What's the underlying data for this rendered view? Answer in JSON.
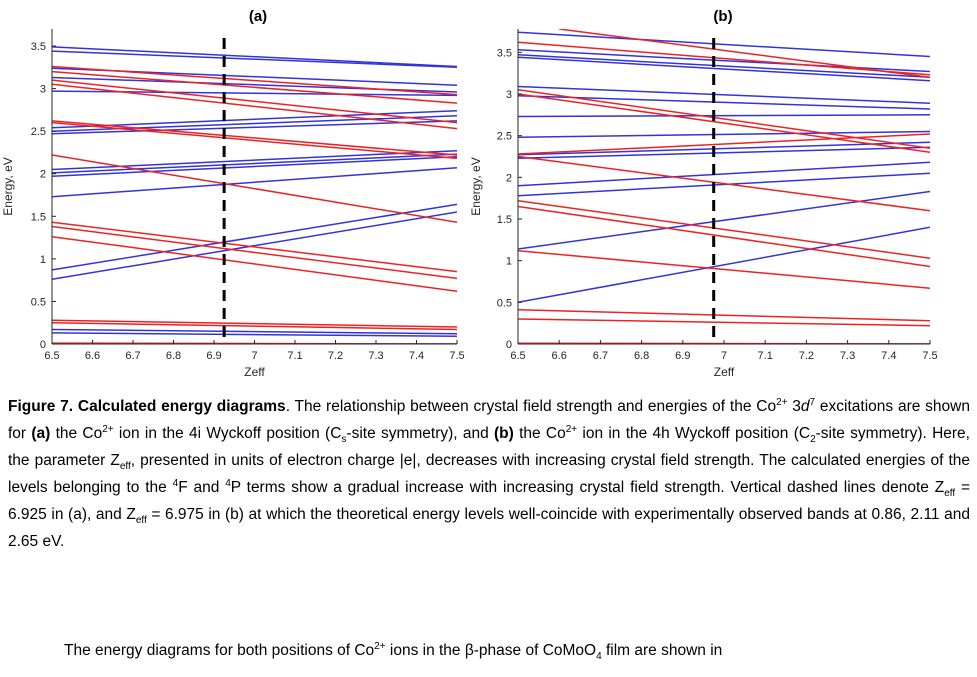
{
  "figure": {
    "panel_a_label": "(a)",
    "panel_b_label": "(b)"
  },
  "chart_data": [
    {
      "type": "line",
      "panel": "(a)",
      "xlabel": "Zeff",
      "ylabel": "Energy, eV",
      "xlim": [
        6.5,
        7.5
      ],
      "ylim": [
        0,
        3.7
      ],
      "xticks": [
        "6.5",
        "6.6",
        "6.7",
        "6.8",
        "6.9",
        "7",
        "7.1",
        "7.2",
        "7.3",
        "7.4",
        "7.5"
      ],
      "yticks": [
        "0",
        "0.5",
        "1",
        "1.5",
        "2",
        "2.5",
        "3",
        "3.5"
      ],
      "grid": false,
      "dashed_line_x": 6.925,
      "series": [
        {
          "color": "#3333dd",
          "x": [
            6.5,
            7.5
          ],
          "y": [
            3.49,
            3.26
          ]
        },
        {
          "color": "#3333dd",
          "x": [
            6.5,
            7.5
          ],
          "y": [
            3.44,
            3.25
          ]
        },
        {
          "color": "#3333dd",
          "x": [
            6.5,
            7.5
          ],
          "y": [
            3.24,
            3.04
          ]
        },
        {
          "color": "#3333dd",
          "x": [
            6.5,
            7.5
          ],
          "y": [
            3.13,
            2.96
          ]
        },
        {
          "color": "#3333dd",
          "x": [
            6.5,
            7.5
          ],
          "y": [
            2.97,
            2.92
          ]
        },
        {
          "color": "#3333dd",
          "x": [
            6.5,
            7.5
          ],
          "y": [
            2.54,
            2.74
          ]
        },
        {
          "color": "#3333dd",
          "x": [
            6.5,
            7.5
          ],
          "y": [
            2.5,
            2.68
          ]
        },
        {
          "color": "#3333dd",
          "x": [
            6.5,
            7.5
          ],
          "y": [
            2.47,
            2.62
          ]
        },
        {
          "color": "#3333dd",
          "x": [
            6.5,
            7.5
          ],
          "y": [
            2.05,
            2.27
          ]
        },
        {
          "color": "#3333dd",
          "x": [
            6.5,
            7.5
          ],
          "y": [
            2.01,
            2.23
          ]
        },
        {
          "color": "#3333dd",
          "x": [
            6.5,
            7.5
          ],
          "y": [
            1.97,
            2.2
          ]
        },
        {
          "color": "#3333dd",
          "x": [
            6.5,
            7.5
          ],
          "y": [
            1.73,
            2.07
          ]
        },
        {
          "color": "#3333dd",
          "x": [
            6.5,
            7.5
          ],
          "y": [
            0.87,
            1.64
          ]
        },
        {
          "color": "#3333dd",
          "x": [
            6.5,
            7.5
          ],
          "y": [
            0.76,
            1.55
          ]
        },
        {
          "color": "#3333dd",
          "x": [
            6.5,
            7.5
          ],
          "y": [
            0.17,
            0.12
          ]
        },
        {
          "color": "#3333dd",
          "x": [
            6.5,
            7.5
          ],
          "y": [
            0.13,
            0.09
          ]
        },
        {
          "color": "#3333dd",
          "x": [
            6.5,
            7.5
          ],
          "y": [
            0.0,
            0.0
          ]
        },
        {
          "color": "#ee2222",
          "x": [
            6.5,
            7.5
          ],
          "y": [
            3.26,
            2.93
          ]
        },
        {
          "color": "#ee2222",
          "x": [
            6.5,
            7.5
          ],
          "y": [
            3.2,
            2.83
          ]
        },
        {
          "color": "#ee2222",
          "x": [
            6.5,
            7.5
          ],
          "y": [
            3.1,
            2.6
          ]
        },
        {
          "color": "#ee2222",
          "x": [
            6.5,
            7.5
          ],
          "y": [
            3.05,
            2.53
          ]
        },
        {
          "color": "#ee2222",
          "x": [
            6.5,
            7.5
          ],
          "y": [
            2.62,
            2.22
          ]
        },
        {
          "color": "#ee2222",
          "x": [
            6.5,
            7.5
          ],
          "y": [
            2.6,
            2.18
          ]
        },
        {
          "color": "#ee2222",
          "x": [
            6.5,
            7.5
          ],
          "y": [
            2.22,
            1.43
          ]
        },
        {
          "color": "#ee2222",
          "x": [
            6.5,
            7.5
          ],
          "y": [
            1.43,
            0.85
          ]
        },
        {
          "color": "#ee2222",
          "x": [
            6.5,
            7.5
          ],
          "y": [
            1.38,
            0.77
          ]
        },
        {
          "color": "#ee2222",
          "x": [
            6.5,
            7.5
          ],
          "y": [
            1.26,
            0.62
          ]
        },
        {
          "color": "#ee2222",
          "x": [
            6.5,
            7.5
          ],
          "y": [
            0.28,
            0.2
          ]
        },
        {
          "color": "#ee2222",
          "x": [
            6.5,
            7.5
          ],
          "y": [
            0.25,
            0.17
          ]
        },
        {
          "color": "#ee2222",
          "x": [
            6.5,
            7.5
          ],
          "y": [
            0.01,
            0.0
          ]
        }
      ]
    },
    {
      "type": "line",
      "panel": "(b)",
      "xlabel": "Zeff",
      "ylabel": "Energy, eV",
      "xlim": [
        6.5,
        7.5
      ],
      "ylim": [
        0,
        3.78
      ],
      "xticks": [
        "6.5",
        "6.6",
        "6.7",
        "6.8",
        "6.9",
        "7",
        "7.1",
        "7.2",
        "7.3",
        "7.4",
        "7.5"
      ],
      "yticks": [
        "0",
        "0.5",
        "1",
        "1.5",
        "2",
        "2.5",
        "3",
        "3.5"
      ],
      "grid": false,
      "dashed_line_x": 6.975,
      "series": [
        {
          "color": "#3333dd",
          "x": [
            6.5,
            7.5
          ],
          "y": [
            3.74,
            3.45
          ]
        },
        {
          "color": "#3333dd",
          "x": [
            6.5,
            7.5
          ],
          "y": [
            3.53,
            3.27
          ]
        },
        {
          "color": "#3333dd",
          "x": [
            6.5,
            7.5
          ],
          "y": [
            3.47,
            3.2
          ]
        },
        {
          "color": "#3333dd",
          "x": [
            6.5,
            7.5
          ],
          "y": [
            3.44,
            3.16
          ]
        },
        {
          "color": "#3333dd",
          "x": [
            6.5,
            7.5
          ],
          "y": [
            3.09,
            2.89
          ]
        },
        {
          "color": "#3333dd",
          "x": [
            6.5,
            7.5
          ],
          "y": [
            2.98,
            2.82
          ]
        },
        {
          "color": "#3333dd",
          "x": [
            6.5,
            7.5
          ],
          "y": [
            2.73,
            2.75
          ]
        },
        {
          "color": "#3333dd",
          "x": [
            6.5,
            7.5
          ],
          "y": [
            2.48,
            2.55
          ]
        },
        {
          "color": "#3333dd",
          "x": [
            6.5,
            7.5
          ],
          "y": [
            2.27,
            2.42
          ]
        },
        {
          "color": "#3333dd",
          "x": [
            6.5,
            7.5
          ],
          "y": [
            2.23,
            2.36
          ]
        },
        {
          "color": "#3333dd",
          "x": [
            6.5,
            7.5
          ],
          "y": [
            1.9,
            2.18
          ]
        },
        {
          "color": "#3333dd",
          "x": [
            6.5,
            7.5
          ],
          "y": [
            1.78,
            2.05
          ]
        },
        {
          "color": "#3333dd",
          "x": [
            6.5,
            7.5
          ],
          "y": [
            1.14,
            1.83
          ]
        },
        {
          "color": "#3333dd",
          "x": [
            6.5,
            7.5
          ],
          "y": [
            0.5,
            1.4
          ]
        },
        {
          "color": "#3333dd",
          "x": [
            6.5,
            7.5
          ],
          "y": [
            0.0,
            0.0
          ]
        },
        {
          "color": "#ee2222",
          "x": [
            6.6,
            7.5
          ],
          "y": [
            3.78,
            3.2
          ]
        },
        {
          "color": "#ee2222",
          "x": [
            6.5,
            7.5
          ],
          "y": [
            3.62,
            3.23
          ]
        },
        {
          "color": "#ee2222",
          "x": [
            6.5,
            7.5
          ],
          "y": [
            3.05,
            2.35
          ]
        },
        {
          "color": "#ee2222",
          "x": [
            6.5,
            7.5
          ],
          "y": [
            3.0,
            2.3
          ]
        },
        {
          "color": "#ee2222",
          "x": [
            6.5,
            7.5
          ],
          "y": [
            2.28,
            2.52
          ]
        },
        {
          "color": "#ee2222",
          "x": [
            6.5,
            7.5
          ],
          "y": [
            2.25,
            1.6
          ]
        },
        {
          "color": "#ee2222",
          "x": [
            6.5,
            7.5
          ],
          "y": [
            1.72,
            1.03
          ]
        },
        {
          "color": "#ee2222",
          "x": [
            6.5,
            7.5
          ],
          "y": [
            1.65,
            0.93
          ]
        },
        {
          "color": "#ee2222",
          "x": [
            6.5,
            7.5
          ],
          "y": [
            1.12,
            0.67
          ]
        },
        {
          "color": "#ee2222",
          "x": [
            6.5,
            7.5
          ],
          "y": [
            0.41,
            0.28
          ]
        },
        {
          "color": "#ee2222",
          "x": [
            6.5,
            7.5
          ],
          "y": [
            0.3,
            0.22
          ]
        },
        {
          "color": "#ee2222",
          "x": [
            6.5,
            7.5
          ],
          "y": [
            0.01,
            0.0
          ]
        }
      ]
    }
  ],
  "caption": {
    "bold_title": "Figure 7. Calculated energy diagrams",
    "t01": ". The relationship between crystal field strength and energies of the Co",
    "t02": "2+",
    "t03": " 3",
    "t04": "d",
    "t05": "7",
    "t06": " excitations are shown for ",
    "t07": "(a)",
    "t08": " the Co",
    "t09": "2+",
    "t10": " ion in the 4i Wyckoff position (C",
    "t11": "s",
    "t12": "-site symmetry), and ",
    "t13": "(b)",
    "t14": " the Co",
    "t15": "2+",
    "t16": " ion in the 4h Wyckoff position (C",
    "t17": "2",
    "t18": "-site symmetry). Here, the parameter Z",
    "t19": "eff",
    "t20": ", presented in units of electron charge |e|, decreases with increasing crystal field strength. The calculated energies of the levels belonging to the ",
    "t21": "4",
    "t22": "F and ",
    "t23": "4",
    "t24": "P terms show a gradual increase with increasing crystal field strength. Vertical dashed lines denote Z",
    "t25": "eff",
    "t26": " = 6.925 in (a), and Z",
    "t27": "eff",
    "t28": " = 6.975 in (b) at which the theoretical energy levels well-coincide with experimentally observed bands at 0.86, 2.11 and 2.65 eV."
  },
  "body": {
    "t1": "The energy diagrams for both positions of Co",
    "t2": "2+",
    "t3": " ions in the β-phase of CoMoO",
    "t4": "4",
    "t5": " film are shown in"
  }
}
